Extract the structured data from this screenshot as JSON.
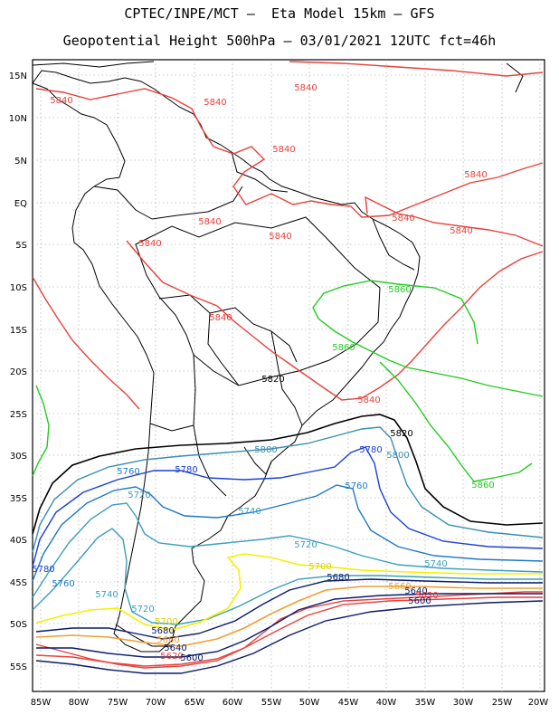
{
  "header": {
    "line1": "CPTEC/INPE/MCT –  Eta Model 15km – GFS",
    "line2": "Geopotential Height 500hPa – 03/01/2021 12UTC fct=46h"
  },
  "axes": {
    "lat_labels": [
      "15N",
      "10N",
      "5N",
      "EQ",
      "5S",
      "10S",
      "15S",
      "20S",
      "25S",
      "30S",
      "35S",
      "40S",
      "45S",
      "50S",
      "55S"
    ],
    "lon_labels": [
      "85W",
      "80W",
      "75W",
      "70W",
      "65W",
      "60W",
      "55W",
      "50W",
      "45W",
      "40W",
      "35W",
      "30W",
      "25W",
      "20W"
    ]
  },
  "colors": {
    "c5840": "#e8413c",
    "c5860": "#22cc22",
    "c5820": "#000000",
    "c5800": "#3a8fb0",
    "c5780": "#1a3fd6",
    "c5760": "#1f78c8",
    "c5740": "#3aa0c0",
    "c5720": "#3a9fb8",
    "c5700": "#f5f000",
    "c5680": "#f0a030",
    "c5660": "#e8413c",
    "c5640": "#0a1a6a",
    "coast": "#000000"
  },
  "contour_labels": [
    {
      "text": "5840",
      "color": "#e8413c"
    },
    {
      "text": "5840",
      "color": "#e8413c"
    },
    {
      "text": "5840",
      "color": "#e8413c"
    },
    {
      "text": "5840",
      "color": "#e8413c"
    },
    {
      "text": "5840",
      "color": "#e8413c"
    },
    {
      "text": "5840",
      "color": "#e8413c"
    },
    {
      "text": "5840",
      "color": "#e8413c"
    },
    {
      "text": "5840",
      "color": "#e8413c"
    },
    {
      "text": "5840",
      "color": "#e8413c"
    },
    {
      "text": "5840",
      "color": "#e8413c"
    },
    {
      "text": "5840",
      "color": "#e8413c"
    },
    {
      "text": "5840",
      "color": "#e8413c"
    },
    {
      "text": "5860",
      "color": "#22cc22"
    },
    {
      "text": "5860",
      "color": "#22cc22"
    },
    {
      "text": "5860",
      "color": "#22cc22"
    },
    {
      "text": "5820",
      "color": "#000000"
    },
    {
      "text": "5820",
      "color": "#000000"
    },
    {
      "text": "5800",
      "color": "#3a8fb0"
    },
    {
      "text": "5800",
      "color": "#3a8fb0"
    },
    {
      "text": "5780",
      "color": "#1a3fd6"
    },
    {
      "text": "5780",
      "color": "#1a3fd6"
    },
    {
      "text": "5780",
      "color": "#1a3fd6"
    },
    {
      "text": "5760",
      "color": "#1f78c8"
    },
    {
      "text": "5760",
      "color": "#1f78c8"
    },
    {
      "text": "5760",
      "color": "#1f78c8"
    },
    {
      "text": "5740",
      "color": "#3aa0c0"
    },
    {
      "text": "5740",
      "color": "#3aa0c0"
    },
    {
      "text": "5740",
      "color": "#3aa0c0"
    },
    {
      "text": "5720",
      "color": "#3a9fb8"
    },
    {
      "text": "5720",
      "color": "#3a9fb8"
    },
    {
      "text": "5720",
      "color": "#3a9fb8"
    },
    {
      "text": "5700",
      "color": "#d8d000"
    },
    {
      "text": "5700",
      "color": "#d8d000"
    },
    {
      "text": "5680",
      "color": "#0a1a6a"
    },
    {
      "text": "5680",
      "color": "#0a1a6a"
    },
    {
      "text": "5660",
      "color": "#f0a030"
    },
    {
      "text": "5660",
      "color": "#f0a030"
    },
    {
      "text": "5640",
      "color": "#0a1a6a"
    },
    {
      "text": "5640",
      "color": "#0a1a6a"
    },
    {
      "text": "5620",
      "color": "#e8413c"
    },
    {
      "text": "5620",
      "color": "#e8413c"
    },
    {
      "text": "5600",
      "color": "#0a1a6a"
    },
    {
      "text": "5600",
      "color": "#0a1a6a"
    }
  ]
}
